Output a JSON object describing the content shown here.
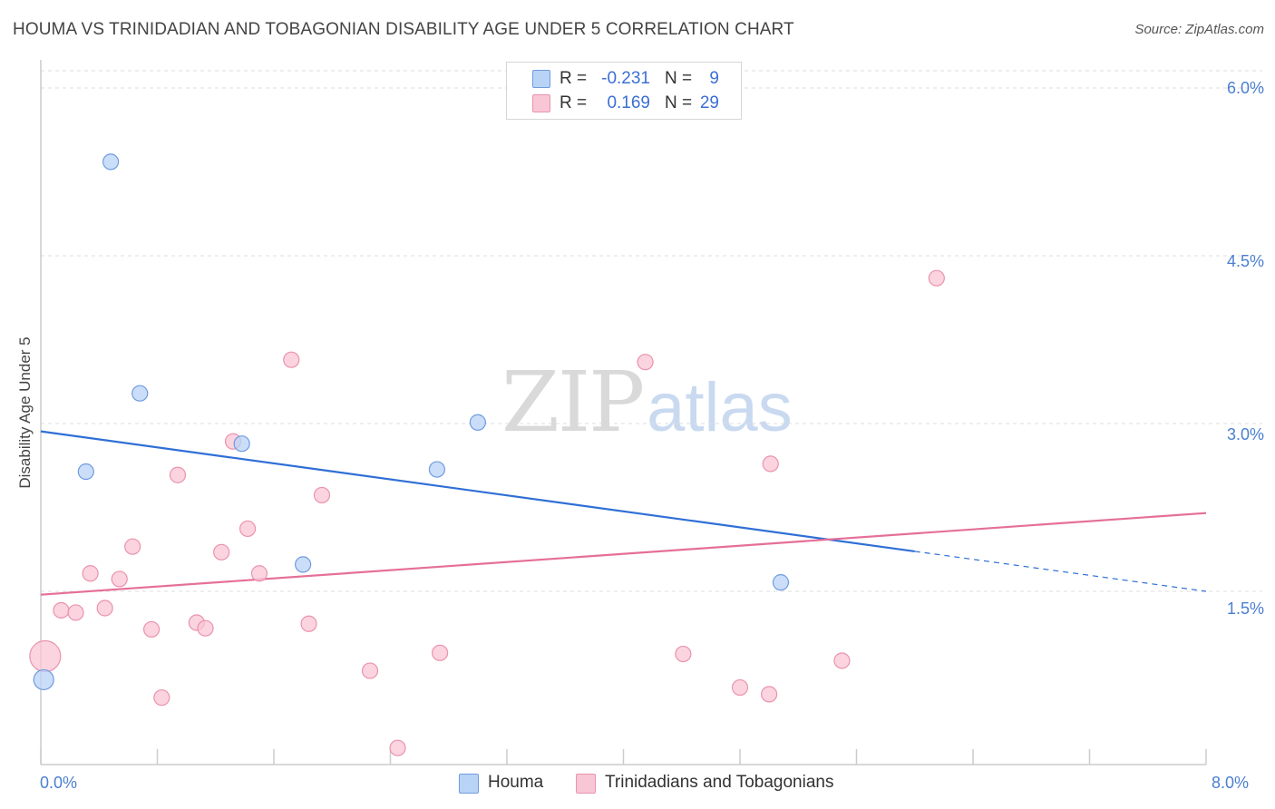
{
  "title": "HOUMA VS TRINIDADIAN AND TOBAGONIAN DISABILITY AGE UNDER 5 CORRELATION CHART",
  "source": "Source: ZipAtlas.com",
  "watermark": {
    "zip": "ZIP",
    "atlas": "atlas"
  },
  "colors": {
    "houma_fill": "#b9d3f7",
    "houma_stroke": "#6f9be0",
    "houma_line": "#2f6fd6",
    "trin_fill": "#f9c6d6",
    "trin_stroke": "#ea93ad",
    "trin_line": "#e56f98",
    "grid": "#dddddd",
    "axis": "#cccccc",
    "tick_text": "#4a7fd0"
  },
  "stats": [
    {
      "r_label": "R =",
      "r_value": "-0.231",
      "n_label": "N =",
      "n_value": "9",
      "series": "Houma"
    },
    {
      "r_label": "R =",
      "r_value": "0.169",
      "n_label": "N =",
      "n_value": "29",
      "series": "Trinidadians and Tobagonians"
    }
  ],
  "legend": [
    {
      "label": "Houma"
    },
    {
      "label": "Trinidadians and Tobagonians"
    }
  ],
  "chart_data": {
    "type": "scatter",
    "title": "HOUMA VS TRINIDADIAN AND TOBAGONIAN DISABILITY AGE UNDER 5 CORRELATION CHART",
    "xlabel": "",
    "ylabel": "Disability Age Under 5",
    "xlim": [
      0,
      8
    ],
    "ylim": [
      0,
      6.15
    ],
    "x_tick_labels": [
      "0.0%",
      "8.0%"
    ],
    "y_ticks": [
      1.5,
      3.0,
      4.5,
      6.0
    ],
    "y_tick_labels": [
      "1.5%",
      "3.0%",
      "4.5%",
      "6.0%"
    ],
    "grid": true,
    "series": [
      {
        "name": "Houma",
        "r": -0.231,
        "n": 9,
        "points": [
          {
            "x": 0.02,
            "y": 0.71,
            "size": "large"
          },
          {
            "x": 0.48,
            "y": 5.34
          },
          {
            "x": 0.68,
            "y": 3.27
          },
          {
            "x": 0.31,
            "y": 2.57
          },
          {
            "x": 1.38,
            "y": 2.82
          },
          {
            "x": 1.8,
            "y": 1.74
          },
          {
            "x": 2.72,
            "y": 2.59
          },
          {
            "x": 3.0,
            "y": 3.01
          },
          {
            "x": 5.08,
            "y": 1.58
          }
        ],
        "trend": {
          "x0": 0,
          "y0": 2.93,
          "x_solid_end": 6.0,
          "x1": 8.0,
          "y1": 1.5
        }
      },
      {
        "name": "Trinidadians and Tobagonians",
        "r": 0.169,
        "n": 29,
        "points": [
          {
            "x": 0.03,
            "y": 0.92,
            "size": "large"
          },
          {
            "x": 0.14,
            "y": 1.33
          },
          {
            "x": 0.24,
            "y": 1.31
          },
          {
            "x": 0.34,
            "y": 1.66
          },
          {
            "x": 0.44,
            "y": 1.35
          },
          {
            "x": 0.54,
            "y": 1.61
          },
          {
            "x": 0.63,
            "y": 1.9
          },
          {
            "x": 0.76,
            "y": 1.16
          },
          {
            "x": 0.83,
            "y": 0.55
          },
          {
            "x": 0.94,
            "y": 2.54
          },
          {
            "x": 1.07,
            "y": 1.22
          },
          {
            "x": 1.13,
            "y": 1.17
          },
          {
            "x": 1.24,
            "y": 1.85
          },
          {
            "x": 1.32,
            "y": 2.84
          },
          {
            "x": 1.42,
            "y": 2.06
          },
          {
            "x": 1.5,
            "y": 1.66
          },
          {
            "x": 1.72,
            "y": 3.57
          },
          {
            "x": 1.84,
            "y": 1.21
          },
          {
            "x": 1.93,
            "y": 2.36
          },
          {
            "x": 2.26,
            "y": 0.79
          },
          {
            "x": 2.45,
            "y": 0.1
          },
          {
            "x": 2.74,
            "y": 0.95
          },
          {
            "x": 4.15,
            "y": 3.55
          },
          {
            "x": 4.41,
            "y": 0.94
          },
          {
            "x": 4.8,
            "y": 0.64
          },
          {
            "x": 5.01,
            "y": 2.64
          },
          {
            "x": 5.0,
            "y": 0.58
          },
          {
            "x": 5.5,
            "y": 0.88
          },
          {
            "x": 6.15,
            "y": 4.3
          }
        ],
        "trend": {
          "x0": 0,
          "y0": 1.47,
          "x1": 8.0,
          "y1": 2.2
        }
      }
    ]
  }
}
